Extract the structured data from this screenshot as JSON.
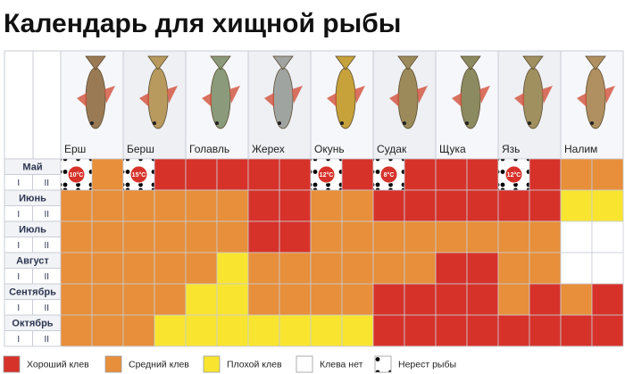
{
  "title": "Календарь для хищной рыбы",
  "legend": [
    {
      "label": "Хороший клев",
      "color": "#d7322a"
    },
    {
      "label": "Средний клев",
      "color": "#e78f3a"
    },
    {
      "label": "Плохой клев",
      "color": "#f9e52f"
    },
    {
      "label": "Клева нет",
      "color": "#ffffff"
    },
    {
      "label": "Нерест рыбы",
      "color": "#ffffff",
      "dots": "#000000"
    }
  ],
  "marker_color": "#d7322a",
  "calendar": {
    "fish": [
      "Ерш",
      "Берш",
      "Голавль",
      "Жерех",
      "Окунь",
      "Судак",
      "Щука",
      "Язь",
      "Налим"
    ],
    "months": [
      {
        "name": "Май",
        "halves": [
          "I",
          "II"
        ],
        "cells": [
          {
            "status": 4,
            "label": "10°C"
          },
          1,
          {
            "status": 4,
            "label": "15°C"
          },
          0,
          0,
          0,
          0,
          0,
          {
            "status": 4,
            "label": "12°C"
          },
          0,
          {
            "status": 4,
            "label": "8°C"
          },
          0,
          0,
          0,
          {
            "status": 4,
            "label": "12°C"
          },
          0,
          1,
          1
        ]
      },
      {
        "name": "Июнь",
        "halves": [
          "I",
          "II"
        ],
        "cells": [
          1,
          1,
          1,
          1,
          1,
          1,
          0,
          0,
          1,
          1,
          0,
          0,
          0,
          0,
          0,
          0,
          2,
          2
        ]
      },
      {
        "name": "Июль",
        "halves": [
          "I",
          "II"
        ],
        "cells": [
          1,
          1,
          1,
          1,
          1,
          1,
          0,
          0,
          1,
          1,
          1,
          1,
          1,
          1,
          1,
          1,
          3,
          3
        ]
      },
      {
        "name": "Август",
        "halves": [
          "I",
          "II"
        ],
        "cells": [
          1,
          1,
          1,
          1,
          1,
          2,
          1,
          1,
          1,
          1,
          1,
          1,
          0,
          0,
          1,
          1,
          3,
          3
        ]
      },
      {
        "name": "Сентябрь",
        "halves": [
          "I",
          "II"
        ],
        "cells": [
          1,
          1,
          1,
          1,
          2,
          2,
          1,
          1,
          1,
          1,
          0,
          0,
          0,
          0,
          1,
          0,
          1,
          0
        ]
      },
      {
        "name": "Октябрь",
        "halves": [
          "I",
          "II"
        ],
        "cells": [
          1,
          1,
          1,
          2,
          2,
          2,
          2,
          2,
          2,
          2,
          0,
          0,
          0,
          0,
          0,
          0,
          0,
          0
        ]
      }
    ]
  }
}
